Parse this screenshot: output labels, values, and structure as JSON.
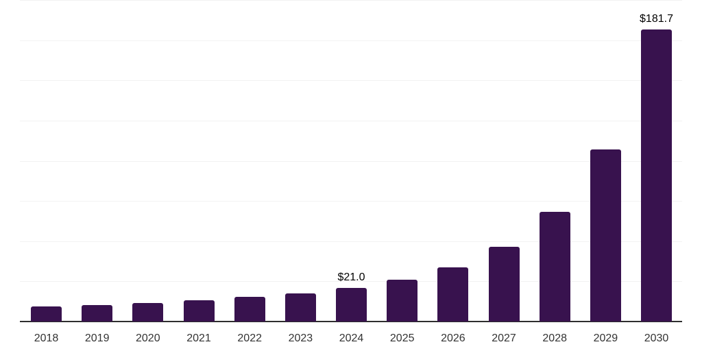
{
  "chart_data": {
    "type": "bar",
    "title": "",
    "categories": [
      "2018",
      "2019",
      "2020",
      "2021",
      "2022",
      "2023",
      "2024",
      "2025",
      "2026",
      "2027",
      "2028",
      "2029",
      "2030"
    ],
    "values": [
      9.5,
      10.4,
      11.7,
      13.1,
      15.3,
      17.4,
      21.0,
      26.0,
      33.8,
      46.3,
      68.1,
      106.9,
      181.7
    ],
    "data_labels": [
      "",
      "",
      "",
      "",
      "",
      "",
      "$21.0",
      "",
      "",
      "",
      "",
      "",
      "$181.7"
    ],
    "xlabel": "",
    "ylabel": "",
    "ylim": [
      0,
      200
    ],
    "gridline_step": 25,
    "grid": "horizontal-light",
    "legend": "none",
    "y_axis_tick_labels": "none",
    "bar_color": "#38124E",
    "gridline_color": "#f2f2f2",
    "axis_color": "#2e2e2e",
    "tick_label_color": "#333333",
    "data_label_color": "#000000"
  }
}
